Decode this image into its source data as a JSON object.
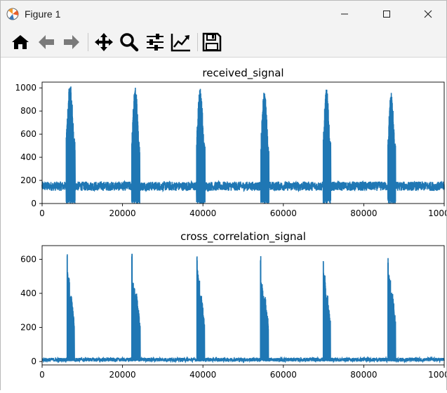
{
  "window": {
    "title": "Figure 1"
  },
  "toolbar": {
    "tools": [
      "home-icon",
      "back-arrow-icon",
      "forward-arrow-icon",
      "pan-icon",
      "zoom-icon",
      "configure-subplots-icon",
      "edit-axis-icon",
      "save-icon"
    ]
  },
  "colors": {
    "line": "#1f77b4",
    "background": "#ffffff",
    "toolbar": "#f3f3f3"
  },
  "chart_data": [
    {
      "type": "line",
      "title": "received_signal",
      "xlim": [
        0,
        100000
      ],
      "ylim": [
        0,
        1050
      ],
      "xticks": [
        "0",
        "20000",
        "40000",
        "60000",
        "80000",
        "100000"
      ],
      "yticks": [
        "0",
        "200",
        "400",
        "600",
        "800",
        "1000"
      ],
      "xtick_values": [
        0,
        20000,
        40000,
        60000,
        80000,
        100000
      ],
      "ytick_values": [
        0,
        200,
        400,
        600,
        800,
        1000
      ],
      "baseline": {
        "center": 150,
        "min": 110,
        "max": 190
      },
      "bursts": [
        {
          "start": 6000,
          "end": 8200,
          "peak": 1040,
          "trough": 0
        },
        {
          "start": 22300,
          "end": 24300,
          "peak": 1005,
          "trough": 0
        },
        {
          "start": 38400,
          "end": 40500,
          "peak": 995,
          "trough": 0
        },
        {
          "start": 54400,
          "end": 56400,
          "peak": 970,
          "trough": 0
        },
        {
          "start": 69900,
          "end": 71800,
          "peak": 995,
          "trough": 0
        },
        {
          "start": 86000,
          "end": 87900,
          "peak": 970,
          "trough": 0
        }
      ]
    },
    {
      "type": "line",
      "title": "cross_correlation_signal",
      "xlim": [
        0,
        100000
      ],
      "ylim": [
        -20,
        680
      ],
      "xticks": [
        "0",
        "20000",
        "40000",
        "60000",
        "80000",
        "100000"
      ],
      "yticks": [
        "0",
        "200",
        "400",
        "600"
      ],
      "xtick_values": [
        0,
        20000,
        40000,
        60000,
        80000,
        100000
      ],
      "ytick_values": [
        0,
        200,
        400,
        600
      ],
      "baseline": {
        "center": 10,
        "min": 0,
        "max": 22
      },
      "bursts": [
        {
          "start": 6200,
          "end": 8000,
          "peak": 645,
          "second": 550,
          "third": 395
        },
        {
          "start": 22300,
          "end": 24400,
          "peak": 635,
          "second": 500,
          "third": 400
        },
        {
          "start": 38500,
          "end": 40400,
          "peak": 635,
          "second": 555,
          "third": 390
        },
        {
          "start": 54300,
          "end": 56300,
          "peak": 640,
          "second": 500,
          "third": 385
        },
        {
          "start": 69900,
          "end": 71700,
          "peak": 635,
          "second": 555,
          "third": 400
        },
        {
          "start": 86000,
          "end": 87900,
          "peak": 625,
          "second": 550,
          "third": 410
        }
      ]
    }
  ]
}
